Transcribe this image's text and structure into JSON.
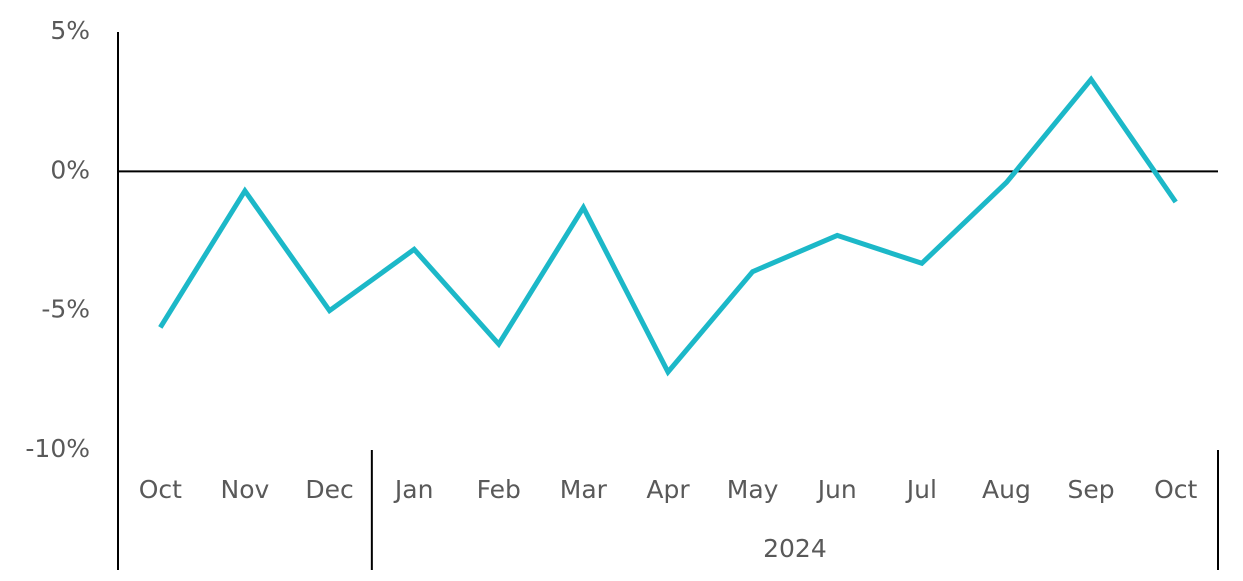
{
  "chart_data": {
    "type": "line",
    "categories": [
      "Oct",
      "Nov",
      "Dec",
      "Jan",
      "Feb",
      "Mar",
      "Apr",
      "May",
      "Jun",
      "Jul",
      "Aug",
      "Sep",
      "Oct"
    ],
    "x_groups": [
      {
        "label": null,
        "count": 3
      },
      {
        "label": "2024",
        "count": 10
      }
    ],
    "series": [
      {
        "name": null,
        "color": "#1cb8c8",
        "values": [
          -5.6,
          -0.7,
          -5.0,
          -2.8,
          -6.2,
          -1.3,
          -7.2,
          -3.6,
          -2.3,
          -3.3,
          -0.4,
          3.3,
          -1.1
        ]
      }
    ],
    "ylim": [
      -10,
      5
    ],
    "yticks": [
      {
        "value": 5,
        "label": "5%"
      },
      {
        "value": 0,
        "label": "0%"
      },
      {
        "value": -5,
        "label": "-5%"
      },
      {
        "value": -10,
        "label": "-10%"
      }
    ],
    "zero_line": true
  }
}
